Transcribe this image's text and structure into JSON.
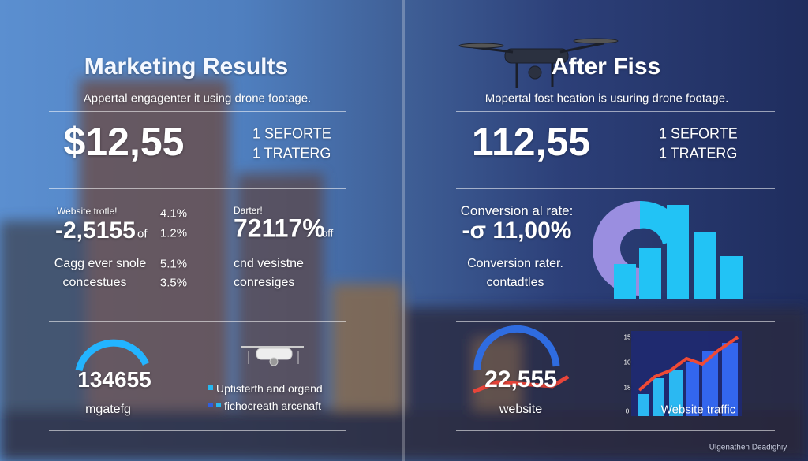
{
  "left": {
    "title": "Marketing Results",
    "subtitle": "Appertal engagenter it using drone footage.",
    "big_value": "$12,55",
    "side_lines": [
      "1 SEFORTE",
      "1 TRATERG"
    ],
    "website_label": "Website trotle!",
    "website_value": "-2,5155",
    "website_unit": "of",
    "percents_top": [
      "4.1%",
      "1.2%"
    ],
    "lines_bottom": [
      "Cagg ever snole",
      "concestues"
    ],
    "percents_bottom": [
      "5.1%",
      "3.5%"
    ],
    "right_label": "Darter!",
    "right_value": "72117%",
    "right_unit": "off",
    "right_lines": [
      "cnd vesistne",
      "conresiges"
    ],
    "gauge_value": "134655",
    "gauge_label": "mgatefg",
    "legend": [
      "Uptisterth and orgend",
      "fichocreath arcenaft"
    ]
  },
  "right": {
    "title": "After Fiss",
    "subtitle": "Mopertal fost hcation is usuring drone footage.",
    "big_value": "112,55",
    "side_lines": [
      "1 SEFORTE",
      "1 TRATERG"
    ],
    "conversion_label": "Conversion al rate:",
    "conversion_value": "-σ 11,00%",
    "conversion_lines": [
      "Conversion rater.",
      "contadtles"
    ],
    "gauge_value": "22,555",
    "gauge_label": "website",
    "traffic_label": "Website traffic",
    "traffic_ticks": [
      "15",
      "10",
      "18",
      "0"
    ]
  },
  "footer": "Ulgenathen Deadighiy"
}
